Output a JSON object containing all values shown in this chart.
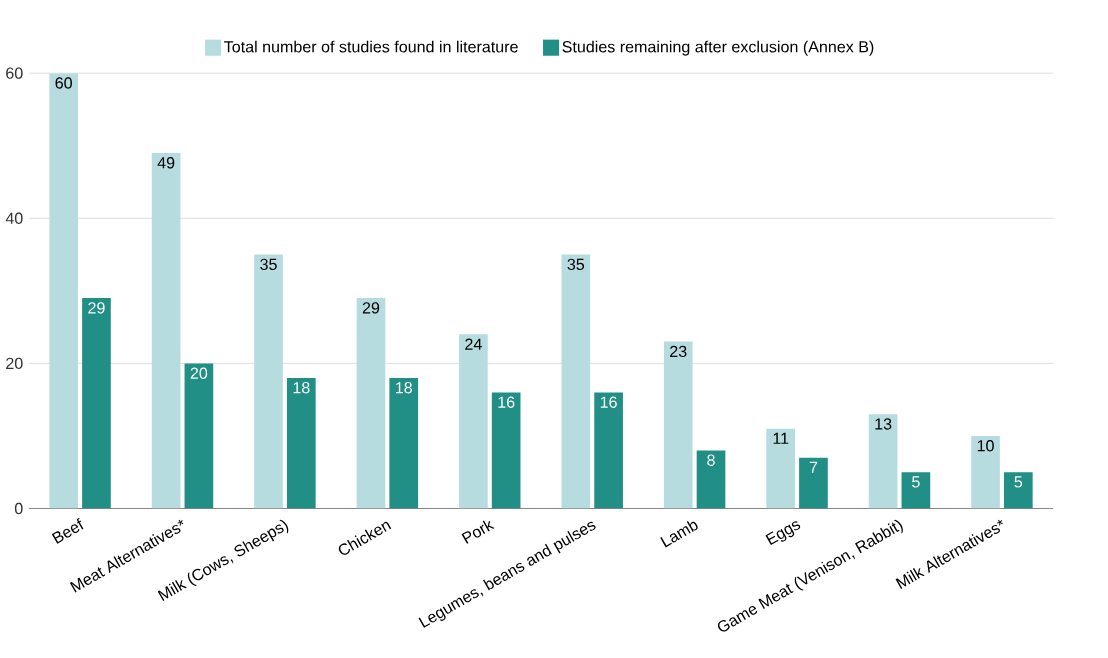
{
  "chart_data": {
    "type": "bar",
    "categories": [
      "Beef",
      "Meat Alternatives*",
      "Milk (Cows, Sheeps)",
      "Chicken",
      "Pork",
      "Legumes, beans and pulses",
      "Lamb",
      "Eggs",
      "Game Meat (Venison, Rabbit)",
      "Milk Alternatives*"
    ],
    "series": [
      {
        "name": "Total number of studies found in literature",
        "color": "#b7dce0",
        "values": [
          60,
          49,
          35,
          29,
          24,
          35,
          23,
          11,
          13,
          10
        ]
      },
      {
        "name": "Studies remaining after exclusion (Annex B)",
        "color": "#218f85",
        "values": [
          29,
          20,
          18,
          18,
          16,
          16,
          8,
          7,
          5,
          5
        ]
      }
    ],
    "ylim": [
      0,
      60
    ],
    "yticks": [
      0,
      20,
      40,
      60
    ],
    "grid": "y",
    "legend": "top",
    "data_labels": true
  }
}
